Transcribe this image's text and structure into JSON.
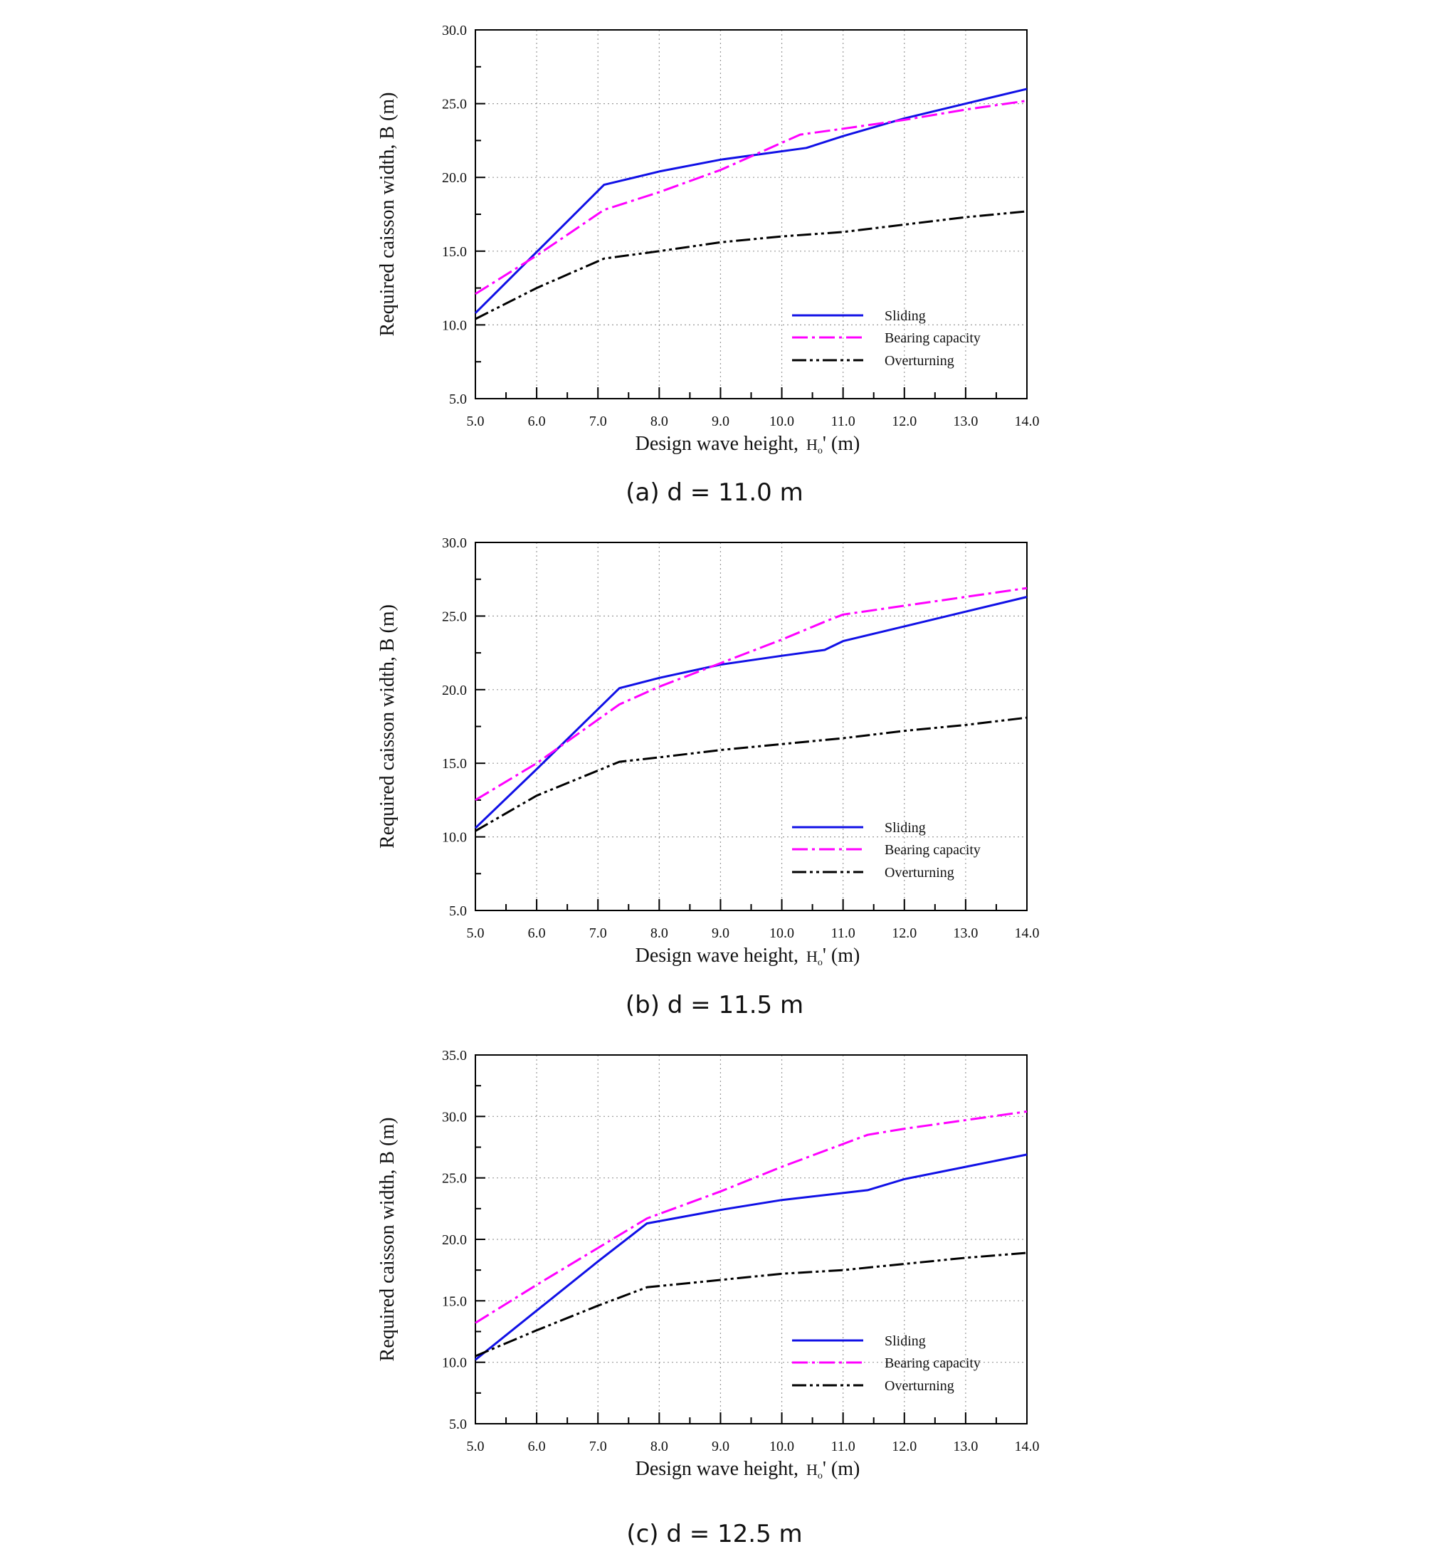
{
  "chart_data": [
    {
      "type": "line",
      "caption": "(a) d = 11.0 m",
      "xlabel": "Design wave height,",
      "xlabel_symbol": "H",
      "xlabel_subscript": "o",
      "xlabel_unit": "' (m)",
      "ylabel": "Required caisson width, B (m)",
      "xlim": [
        5.0,
        14.0
      ],
      "ylim": [
        5.0,
        30.0
      ],
      "x_ticks": [
        "5.0",
        "6.0",
        "7.0",
        "8.0",
        "9.0",
        "10.0",
        "11.0",
        "12.0",
        "13.0",
        "14.0"
      ],
      "y_ticks": [
        "5.0",
        "10.0",
        "15.0",
        "20.0",
        "25.0",
        "30.0"
      ],
      "grid": true,
      "legend_position": "lower-right",
      "series": [
        {
          "name": "Sliding",
          "color": "#1010e6",
          "style": "solid",
          "x": [
            5.0,
            7.1,
            8.0,
            9.0,
            10.4,
            11.0,
            12.0,
            13.0,
            14.0
          ],
          "y": [
            10.8,
            19.5,
            20.4,
            21.2,
            22.0,
            22.8,
            24.0,
            25.0,
            26.0
          ]
        },
        {
          "name": "Bearing capacity",
          "color": "#ff00ff",
          "style": "dashdot",
          "x": [
            5.0,
            6.0,
            7.1,
            8.0,
            9.0,
            10.3,
            11.0,
            12.0,
            13.0,
            14.0
          ],
          "y": [
            12.1,
            14.7,
            17.8,
            19.0,
            20.5,
            22.9,
            23.3,
            23.9,
            24.6,
            25.2
          ]
        },
        {
          "name": "Overturning",
          "color": "#000000",
          "style": "dashdotdot",
          "x": [
            5.0,
            6.0,
            7.1,
            8.0,
            9.0,
            10.0,
            11.0,
            12.0,
            13.0,
            14.0
          ],
          "y": [
            10.4,
            12.5,
            14.5,
            15.0,
            15.6,
            16.0,
            16.3,
            16.8,
            17.3,
            17.7
          ]
        }
      ]
    },
    {
      "type": "line",
      "caption": "(b) d = 11.5 m",
      "xlabel": "Design wave height,",
      "xlabel_symbol": "H",
      "xlabel_subscript": "o",
      "xlabel_unit": "' (m)",
      "ylabel": "Required caisson width, B (m)",
      "xlim": [
        5.0,
        14.0
      ],
      "ylim": [
        5.0,
        30.0
      ],
      "x_ticks": [
        "5.0",
        "6.0",
        "7.0",
        "8.0",
        "9.0",
        "10.0",
        "11.0",
        "12.0",
        "13.0",
        "14.0"
      ],
      "y_ticks": [
        "5.0",
        "10.0",
        "15.0",
        "20.0",
        "25.0",
        "30.0"
      ],
      "grid": true,
      "legend_position": "lower-right",
      "series": [
        {
          "name": "Sliding",
          "color": "#1010e6",
          "style": "solid",
          "x": [
            5.0,
            6.0,
            7.35,
            8.0,
            9.0,
            10.0,
            10.7,
            11.0,
            12.0,
            13.0,
            14.0
          ],
          "y": [
            10.6,
            14.6,
            20.1,
            20.8,
            21.7,
            22.3,
            22.7,
            23.3,
            24.3,
            25.3,
            26.3
          ]
        },
        {
          "name": "Bearing capacity",
          "color": "#ff00ff",
          "style": "dashdot",
          "x": [
            5.0,
            6.0,
            7.35,
            8.0,
            9.0,
            10.0,
            10.75,
            11.0,
            12.0,
            13.0,
            14.0
          ],
          "y": [
            12.5,
            15.0,
            19.0,
            20.2,
            21.8,
            23.4,
            24.7,
            25.1,
            25.7,
            26.3,
            26.9
          ]
        },
        {
          "name": "Overturning",
          "color": "#000000",
          "style": "dashdotdot",
          "x": [
            5.0,
            6.0,
            7.35,
            8.0,
            9.0,
            10.0,
            11.0,
            12.0,
            13.0,
            14.0
          ],
          "y": [
            10.4,
            12.8,
            15.1,
            15.4,
            15.9,
            16.3,
            16.7,
            17.2,
            17.6,
            18.1
          ]
        }
      ]
    },
    {
      "type": "line",
      "caption": "(c) d = 12.5 m",
      "xlabel": "Design wave height,",
      "xlabel_symbol": "H",
      "xlabel_subscript": "o",
      "xlabel_unit": "' (m)",
      "ylabel": "Required caisson width, B (m)",
      "xlim": [
        5.0,
        14.0
      ],
      "ylim": [
        5.0,
        35.0
      ],
      "x_ticks": [
        "5.0",
        "6.0",
        "7.0",
        "8.0",
        "9.0",
        "10.0",
        "11.0",
        "12.0",
        "13.0",
        "14.0"
      ],
      "y_ticks": [
        "5.0",
        "10.0",
        "15.0",
        "20.0",
        "25.0",
        "30.0",
        "35.0"
      ],
      "grid": true,
      "legend_position": "lower-right",
      "series": [
        {
          "name": "Sliding",
          "color": "#1010e6",
          "style": "solid",
          "x": [
            5.0,
            6.0,
            7.0,
            7.8,
            9.0,
            10.0,
            11.4,
            12.0,
            13.0,
            14.0
          ],
          "y": [
            10.2,
            14.2,
            18.2,
            21.3,
            22.4,
            23.2,
            24.0,
            24.9,
            25.9,
            26.9
          ]
        },
        {
          "name": "Bearing capacity",
          "color": "#ff00ff",
          "style": "dashdot",
          "x": [
            5.0,
            6.0,
            7.0,
            7.8,
            9.0,
            10.0,
            11.4,
            12.0,
            13.0,
            14.0
          ],
          "y": [
            13.2,
            16.3,
            19.3,
            21.7,
            23.9,
            25.9,
            28.5,
            29.0,
            29.7,
            30.4
          ]
        },
        {
          "name": "Overturning",
          "color": "#000000",
          "style": "dashdotdot",
          "x": [
            5.0,
            6.0,
            7.0,
            7.8,
            9.0,
            10.0,
            11.0,
            12.0,
            13.0,
            14.0
          ],
          "y": [
            10.5,
            12.6,
            14.6,
            16.1,
            16.7,
            17.2,
            17.5,
            18.0,
            18.5,
            18.9
          ]
        }
      ]
    }
  ]
}
